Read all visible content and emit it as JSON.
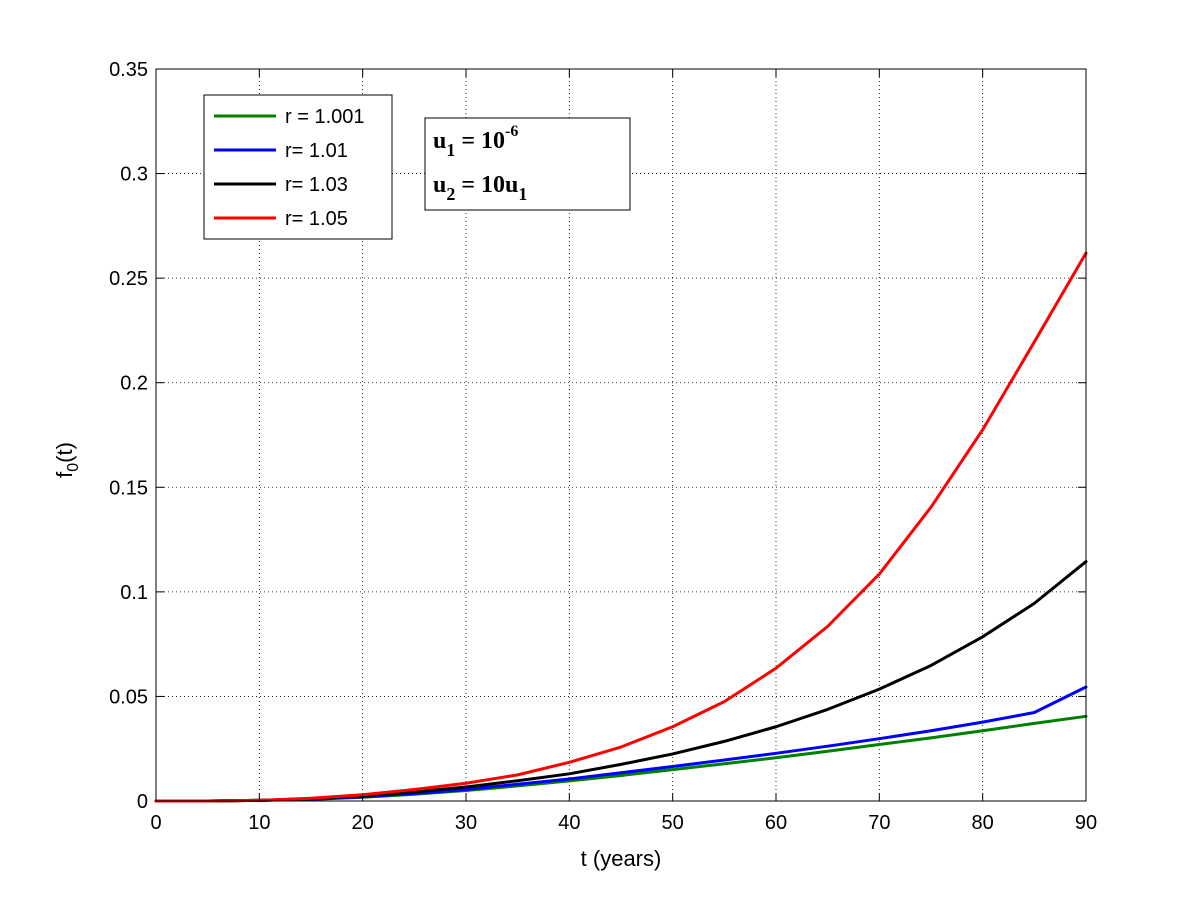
{
  "chart_data": {
    "type": "line",
    "title": "",
    "xlabel": "t (years)",
    "ylabel": "f_0(t)",
    "xlim": [
      0,
      90
    ],
    "ylim": [
      0,
      0.35
    ],
    "xticks": [
      0,
      10,
      20,
      30,
      40,
      50,
      60,
      70,
      80,
      90
    ],
    "xtick_labels": [
      "0",
      "10",
      "20",
      "30",
      "40",
      "50",
      "60",
      "70",
      "80",
      "90"
    ],
    "yticks": [
      0,
      0.05,
      0.1,
      0.15,
      0.2,
      0.25,
      0.3,
      0.35
    ],
    "ytick_labels": [
      "0",
      "0.05",
      "0.1",
      "0.15",
      "0.2",
      "0.25",
      "0.3",
      "0.35"
    ],
    "grid": true,
    "legend_position": "top-left",
    "x": [
      0,
      5,
      10,
      15,
      20,
      25,
      30,
      35,
      40,
      45,
      50,
      55,
      60,
      65,
      70,
      75,
      80,
      85,
      90
    ],
    "series": [
      {
        "name": "r = 1.001",
        "color": "#008000",
        "values": [
          0,
          0,
          0.0003,
          0.0008,
          0.0018,
          0.0032,
          0.005,
          0.0072,
          0.0096,
          0.0122,
          0.015,
          0.0178,
          0.0207,
          0.0238,
          0.027,
          0.0302,
          0.0336,
          0.0371,
          0.0405
        ]
      },
      {
        "name": "r= 1.01",
        "color": "#0000ff",
        "values": [
          0,
          0,
          0.0003,
          0.0009,
          0.002,
          0.0036,
          0.0055,
          0.008,
          0.0105,
          0.0135,
          0.0165,
          0.0196,
          0.0228,
          0.0262,
          0.0298,
          0.0336,
          0.0377,
          0.0423,
          0.0545
        ]
      },
      {
        "name": "r= 1.03",
        "color": "#000000",
        "values": [
          0,
          0,
          0.0003,
          0.0011,
          0.0024,
          0.0043,
          0.0067,
          0.0097,
          0.013,
          0.0175,
          0.0225,
          0.0285,
          0.0355,
          0.0438,
          0.0535,
          0.0648,
          0.0785,
          0.0945,
          0.1145
        ]
      },
      {
        "name": "r= 1.05",
        "color": "#ff0000",
        "values": [
          0,
          0,
          0.0003,
          0.0013,
          0.003,
          0.0055,
          0.0085,
          0.0125,
          0.0185,
          0.0258,
          0.0355,
          0.0475,
          0.0635,
          0.0835,
          0.1085,
          0.1405,
          0.1775,
          0.2195,
          0.262
        ]
      }
    ],
    "annotation": {
      "lines": [
        {
          "base": "u",
          "sub": "1",
          "rest": " = 10",
          "sup": "-6"
        },
        {
          "base": "u",
          "sub": "2",
          "rest": " = 10u",
          "sub2": "1"
        }
      ]
    }
  }
}
